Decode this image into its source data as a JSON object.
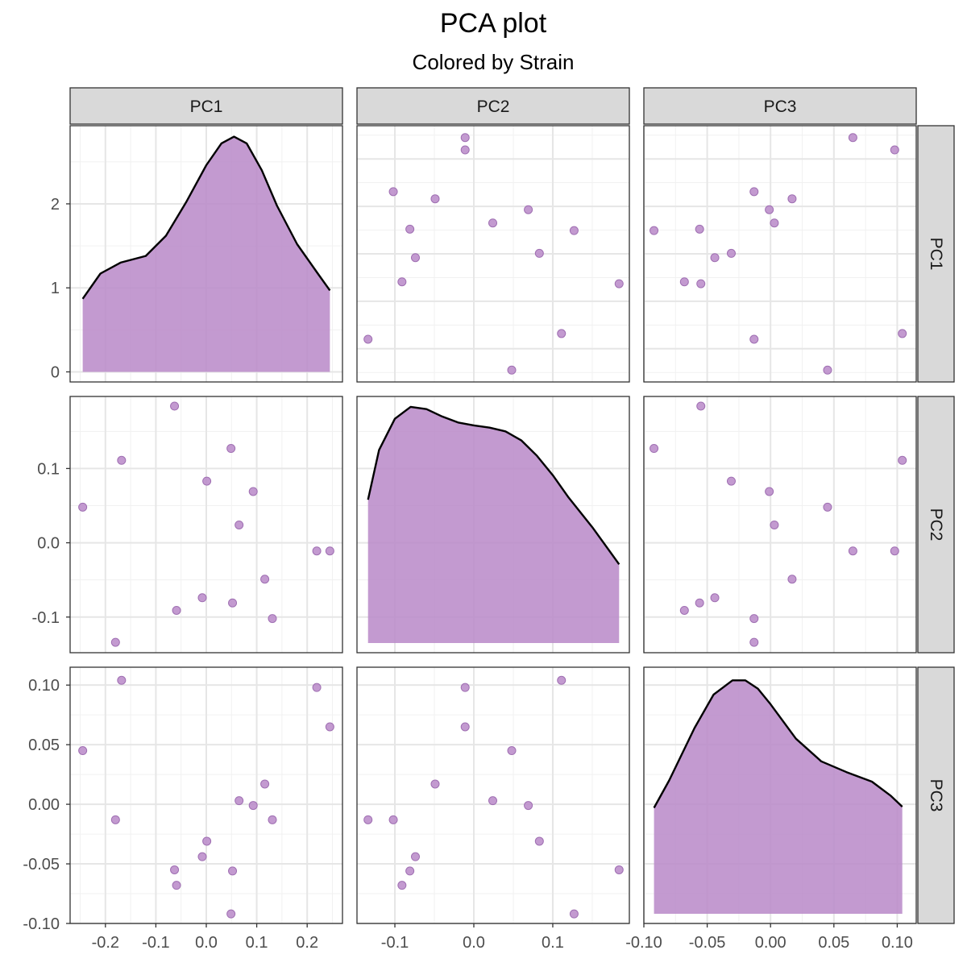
{
  "chart_data": {
    "type": "scatter",
    "title": "PCA plot",
    "subtitle": "Colored by Strain",
    "variables": [
      "PC1",
      "PC2",
      "PC3"
    ],
    "point_color": "#B988C8",
    "density_fill": "#B988C8",
    "density_line": "#000000",
    "grid": true,
    "points": [
      {
        "PC1": -0.245,
        "PC2": 0.048,
        "PC3": 0.045
      },
      {
        "PC1": -0.18,
        "PC2": -0.134,
        "PC3": -0.013
      },
      {
        "PC1": -0.168,
        "PC2": 0.111,
        "PC3": 0.104
      },
      {
        "PC1": -0.063,
        "PC2": 0.184,
        "PC3": -0.055
      },
      {
        "PC1": -0.059,
        "PC2": -0.091,
        "PC3": -0.068
      },
      {
        "PC1": -0.008,
        "PC2": -0.074,
        "PC3": -0.044
      },
      {
        "PC1": 0.001,
        "PC2": 0.083,
        "PC3": -0.031
      },
      {
        "PC1": 0.049,
        "PC2": 0.127,
        "PC3": -0.092
      },
      {
        "PC1": 0.052,
        "PC2": -0.081,
        "PC3": -0.056
      },
      {
        "PC1": 0.065,
        "PC2": 0.024,
        "PC3": 0.003
      },
      {
        "PC1": 0.093,
        "PC2": 0.069,
        "PC3": -0.001
      },
      {
        "PC1": 0.116,
        "PC2": -0.049,
        "PC3": 0.017
      },
      {
        "PC1": 0.131,
        "PC2": -0.102,
        "PC3": -0.013
      },
      {
        "PC1": 0.219,
        "PC2": -0.011,
        "PC3": 0.098
      },
      {
        "PC1": 0.245,
        "PC2": -0.011,
        "PC3": 0.065
      }
    ],
    "ranges": {
      "PC1": [
        -0.27,
        0.27
      ],
      "PC2": [
        -0.148,
        0.197
      ],
      "PC3": [
        -0.1,
        0.115
      ]
    },
    "ticks": {
      "PC1": [
        -0.2,
        -0.1,
        0.0,
        0.1,
        0.2
      ],
      "PC2": [
        -0.1,
        0.0,
        0.1
      ],
      "PC3": [
        -0.1,
        -0.05,
        0.0,
        0.05,
        0.1
      ]
    },
    "density_ticks": [
      0,
      1,
      2
    ],
    "density_range": [
      -0.12,
      2.93
    ],
    "densities": {
      "PC1": {
        "x": [
          -0.245,
          -0.21,
          -0.17,
          -0.12,
          -0.08,
          -0.04,
          0.0,
          0.03,
          0.055,
          0.08,
          0.11,
          0.14,
          0.18,
          0.22,
          0.245
        ],
        "y": [
          0.87,
          1.17,
          1.3,
          1.38,
          1.62,
          2.02,
          2.46,
          2.72,
          2.8,
          2.72,
          2.4,
          1.98,
          1.52,
          1.18,
          0.97
        ]
      },
      "PC2": {
        "x": [
          -0.134,
          -0.12,
          -0.1,
          -0.08,
          -0.06,
          -0.04,
          -0.02,
          0.0,
          0.02,
          0.04,
          0.06,
          0.08,
          0.1,
          0.12,
          0.15,
          0.184
        ],
        "y": [
          0.058,
          0.125,
          0.167,
          0.183,
          0.18,
          0.17,
          0.162,
          0.158,
          0.155,
          0.15,
          0.138,
          0.117,
          0.091,
          0.061,
          0.021,
          -0.029
        ]
      },
      "PC3": {
        "x": [
          -0.092,
          -0.08,
          -0.06,
          -0.045,
          -0.03,
          -0.02,
          -0.01,
          0.0,
          0.02,
          0.04,
          0.06,
          0.08,
          0.095,
          0.104
        ],
        "y": [
          -0.003,
          0.02,
          0.064,
          0.092,
          0.104,
          0.104,
          0.097,
          0.084,
          0.055,
          0.036,
          0.027,
          0.019,
          0.007,
          -0.002
        ]
      }
    }
  }
}
